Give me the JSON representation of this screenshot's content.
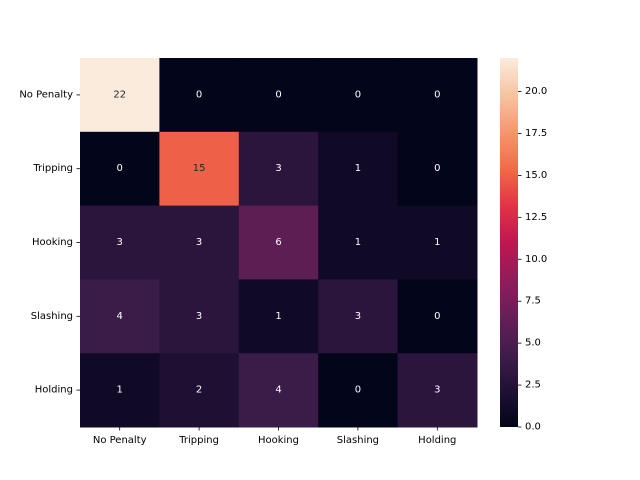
{
  "chart_data": {
    "type": "heatmap",
    "title": "",
    "xlabel": "",
    "ylabel": "",
    "x_categories": [
      "No Penalty",
      "Tripping",
      "Hooking",
      "Slashing",
      "Holding"
    ],
    "y_categories": [
      "No Penalty",
      "Tripping",
      "Hooking",
      "Slashing",
      "Holding"
    ],
    "values": [
      [
        22,
        0,
        0,
        0,
        0
      ],
      [
        0,
        15,
        3,
        1,
        0
      ],
      [
        3,
        3,
        6,
        1,
        1
      ],
      [
        4,
        3,
        1,
        3,
        0
      ],
      [
        1,
        2,
        4,
        0,
        3
      ]
    ],
    "annotations": true,
    "colormap": "rocket",
    "colorbar": {
      "min": 0,
      "max": 22,
      "ticks": [
        0.0,
        2.5,
        5.0,
        7.5,
        10.0,
        12.5,
        15.0,
        17.5,
        20.0
      ],
      "tick_labels": [
        "0.0",
        "2.5",
        "5.0",
        "7.5",
        "10.0",
        "12.5",
        "15.0",
        "17.5",
        "20.0"
      ]
    },
    "colors": {
      "annotation_dark": "#262626",
      "annotation_light": "#ffffff"
    }
  }
}
